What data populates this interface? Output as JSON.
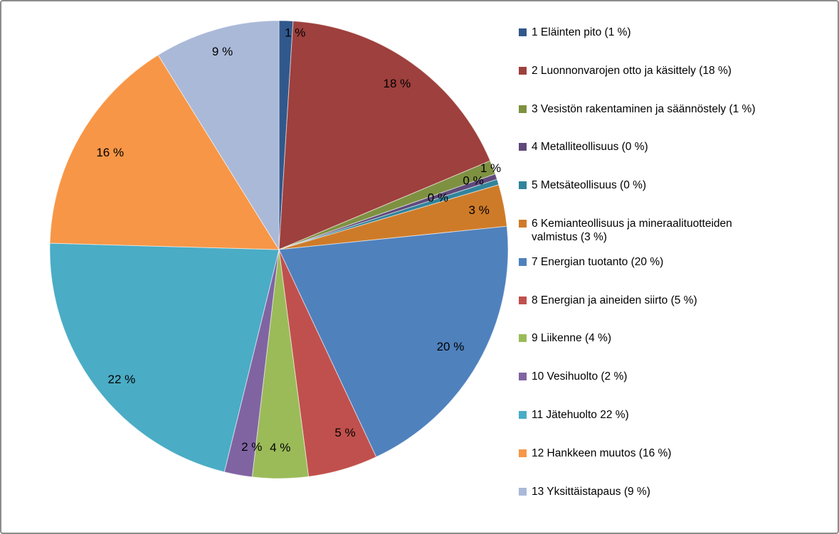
{
  "chart_data": {
    "type": "pie",
    "title": "",
    "legend_position": "right",
    "start_angle_deg": 0,
    "direction": "clockwise",
    "unit": "%",
    "slices": [
      {
        "legend_label": "1 Eläinten pito (1 %)",
        "data_label": "1 %",
        "pct": 1,
        "color": "#31588C"
      },
      {
        "legend_label": "2 Luonnonvarojen otto ja käsittely (18 %)",
        "data_label": "18 %",
        "pct": 18,
        "color": "#9E403D"
      },
      {
        "legend_label": "3 Vesistön rakentaminen ja säännöstely (1 %)",
        "data_label": "1 %",
        "pct": 1,
        "color": "#7E9141"
      },
      {
        "legend_label": "4 Metalliteollisuus (0 %)",
        "data_label": "0 %",
        "pct": 0,
        "color": "#5F497B"
      },
      {
        "legend_label": "5 Metsäteollisuus (0 %)",
        "data_label": "0 %",
        "pct": 0,
        "color": "#31849B"
      },
      {
        "legend_label": "6 Kemianteollisuus ja mineraalituotteiden valmistus (3 %)",
        "data_label": "3 %",
        "pct": 3,
        "color": "#CE7B29"
      },
      {
        "legend_label": "7 Energian tuotanto (20 %)",
        "data_label": "20 %",
        "pct": 20,
        "color": "#4F81BD"
      },
      {
        "legend_label": "8 Energian ja aineiden siirto (5 %)",
        "data_label": "5 %",
        "pct": 5,
        "color": "#C0504D"
      },
      {
        "legend_label": "9 Liikenne (4 %)",
        "data_label": "4 %",
        "pct": 4,
        "color": "#9BBB59"
      },
      {
        "legend_label": "10 Vesihuolto (2 %)",
        "data_label": "2 %",
        "pct": 2,
        "color": "#8064A2"
      },
      {
        "legend_label": "11 Jätehuolto 22 %)",
        "data_label": "22 %",
        "pct": 22,
        "color": "#4AACC5"
      },
      {
        "legend_label": "12 Hankkeen muutos (16 %)",
        "data_label": "16 %",
        "pct": 16,
        "color": "#F79646"
      },
      {
        "legend_label": "13 Yksittäistapaus (9 %)",
        "data_label": "9 %",
        "pct": 9,
        "color": "#AAB9D8"
      }
    ]
  }
}
